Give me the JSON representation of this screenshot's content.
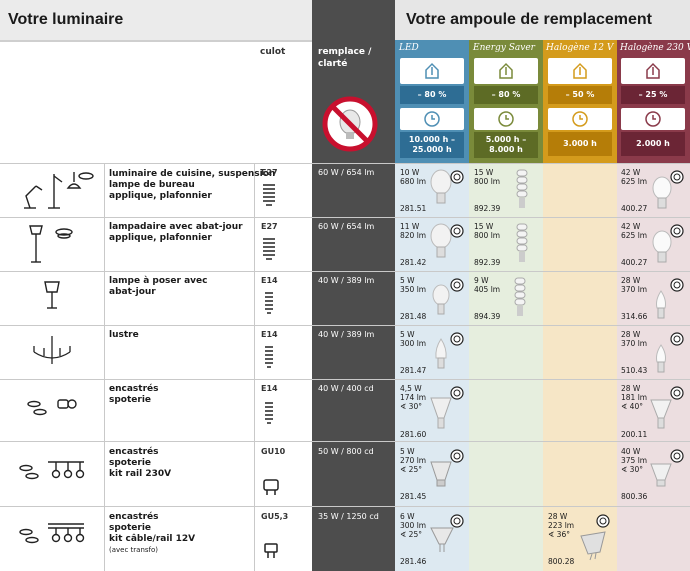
{
  "header": {
    "left_title": "Votre luminaire",
    "right_title": "Votre ampoule de remplacement"
  },
  "columns": {
    "culot": "culot",
    "remplace": "remplace / clarté"
  },
  "bulb_types": [
    {
      "name": "LED",
      "saving": "– 80 %",
      "lifetime": "10.000 h – 25.000 h"
    },
    {
      "name": "Energy Saver",
      "saving": "– 80 %",
      "lifetime": "5.000 h – 8.000 h"
    },
    {
      "name": "Halogène 12 V",
      "saving": "– 50 %",
      "lifetime": "3.000 h"
    },
    {
      "name": "Halogène 230 V",
      "saving": "– 25 %",
      "lifetime": "2.000 h"
    }
  ],
  "rows": [
    {
      "lamp_lines": [
        "luminaire de cuisine, suspension",
        "lampe de bureau",
        "applique, plafonnier"
      ],
      "culot": "E27",
      "remplace": "60 W / 654 lm",
      "led": {
        "specs": [
          "10 W",
          "680 lm"
        ],
        "ref": "281.51"
      },
      "es": {
        "specs": [
          "15 W",
          "800 lm"
        ],
        "ref": "892.39"
      },
      "h230": {
        "specs": [
          "42 W",
          "625 lm"
        ],
        "ref": "400.27"
      }
    },
    {
      "lamp_lines": [
        "lampadaire avec abat-jour",
        "applique, plafonnier"
      ],
      "culot": "E27",
      "remplace": "60 W / 654 lm",
      "led": {
        "specs": [
          "11 W",
          "820 lm"
        ],
        "ref": "281.42"
      },
      "es": {
        "specs": [
          "15 W",
          "800 lm"
        ],
        "ref": "892.39"
      },
      "h230": {
        "specs": [
          "42 W",
          "625 lm"
        ],
        "ref": "400.27"
      }
    },
    {
      "lamp_lines": [
        "lampe à poser avec",
        "abat-jour"
      ],
      "culot": "E14",
      "remplace": "40 W / 389 lm",
      "led": {
        "specs": [
          "5 W",
          "350 lm"
        ],
        "ref": "281.48"
      },
      "es": {
        "specs": [
          "9 W",
          "405 lm"
        ],
        "ref": "894.39"
      },
      "h230": {
        "specs": [
          "28 W",
          "370 lm"
        ],
        "ref": "314.66"
      }
    },
    {
      "lamp_lines": [
        "lustre"
      ],
      "culot": "E14",
      "remplace": "40 W / 389 lm",
      "led": {
        "specs": [
          "5 W",
          "300 lm"
        ],
        "ref": "281.47"
      },
      "h230": {
        "specs": [
          "28 W",
          "370 lm"
        ],
        "ref": "510.43"
      }
    },
    {
      "lamp_lines": [
        "encastrés",
        "spoterie"
      ],
      "culot": "E14",
      "remplace": "40 W / 400 cd",
      "led": {
        "specs": [
          "4,5 W",
          "174 lm",
          "∢ 30°"
        ],
        "ref": "281.60"
      },
      "h230": {
        "specs": [
          "28 W",
          "181 lm",
          "∢ 40°"
        ],
        "ref": "200.11"
      }
    },
    {
      "lamp_lines": [
        "encastrés",
        "spoterie",
        "kit rail 230V"
      ],
      "culot": "GU10",
      "remplace": "50 W / 800 cd",
      "led": {
        "specs": [
          "5 W",
          "270 lm",
          "∢ 25°"
        ],
        "ref": "281.45"
      },
      "h230": {
        "specs": [
          "40 W",
          "375 lm",
          "∢ 30°"
        ],
        "ref": "800.36"
      }
    },
    {
      "lamp_lines": [
        "encastrés",
        "spoterie",
        "kit câble/rail 12V"
      ],
      "lamp_note": "(avec transfo)",
      "culot": "GU5,3",
      "remplace": "35 W / 1250 cd",
      "led": {
        "specs": [
          "6 W",
          "300 lm",
          "∢ 25°"
        ],
        "ref": "281.46"
      },
      "h12": {
        "specs": [
          "28 W",
          "223 lm",
          "∢ 36°"
        ],
        "ref": "800.28"
      }
    }
  ],
  "colors": {
    "led": "#4f8fb4",
    "es": "#7a8a3a",
    "h12": "#d49b1c",
    "h230": "#8a3a4a",
    "dark": "#4d4d4d"
  }
}
